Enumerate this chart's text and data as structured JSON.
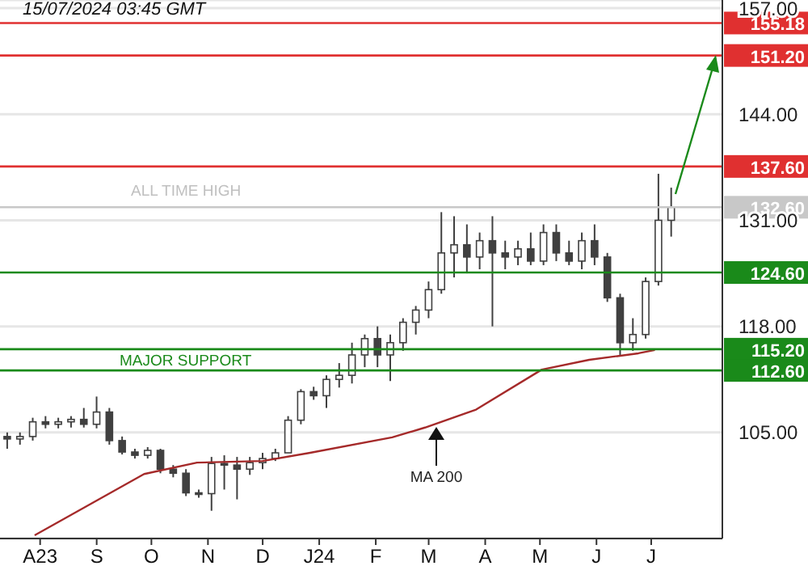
{
  "chart_data": {
    "type": "candlestick",
    "color": "#404040",
    "x": [
      "2023-07-14",
      "2023-07-21",
      "2023-07-28",
      "2023-08-04",
      "2023-08-11",
      "2023-08-18",
      "2023-08-25",
      "2023-09-01",
      "2023-09-08",
      "2023-09-15",
      "2023-09-22",
      "2023-09-29",
      "2023-10-06",
      "2023-10-13",
      "2023-10-20",
      "2023-10-27",
      "2023-11-03",
      "2023-11-10",
      "2023-11-17",
      "2023-11-24",
      "2023-12-01",
      "2023-12-08",
      "2023-12-15",
      "2023-12-22",
      "2023-12-29",
      "2024-01-05",
      "2024-01-12",
      "2024-01-19",
      "2024-01-26",
      "2024-02-02",
      "2024-02-09",
      "2024-02-16",
      "2024-02-23",
      "2024-03-01",
      "2024-03-08",
      "2024-03-15",
      "2024-03-22",
      "2024-03-29",
      "2024-04-05",
      "2024-04-12",
      "2024-04-19",
      "2024-04-26",
      "2024-05-03",
      "2024-05-10",
      "2024-05-17",
      "2024-05-24",
      "2024-05-31",
      "2024-06-07",
      "2024-06-14",
      "2024-06-21",
      "2024-06-28",
      "2024-07-05",
      "2024-07-12"
    ],
    "ohlc": [
      [
        104.5,
        105,
        103,
        104.2
      ],
      [
        104.2,
        105,
        103.5,
        104.5
      ],
      [
        104.5,
        106.8,
        104,
        106.3
      ],
      [
        106.3,
        107,
        105.5,
        106
      ],
      [
        106,
        106.8,
        105.5,
        106.3
      ],
      [
        106.3,
        107,
        105.6,
        106.6
      ],
      [
        106.6,
        108,
        105.6,
        106
      ],
      [
        106,
        109.4,
        105.5,
        107.5
      ],
      [
        107.5,
        108,
        103.5,
        104
      ],
      [
        104,
        104.5,
        102.3,
        102.6
      ],
      [
        102.6,
        103,
        101.8,
        102.2
      ],
      [
        102.2,
        103.2,
        101.8,
        102.8
      ],
      [
        102.8,
        103,
        100,
        100.5
      ],
      [
        100.5,
        101,
        99.5,
        100
      ],
      [
        100,
        100.5,
        97.2,
        97.6
      ],
      [
        97.6,
        98,
        97,
        97.5
      ],
      [
        97.5,
        102,
        95.4,
        101.2
      ],
      [
        101.2,
        102.2,
        98,
        101
      ],
      [
        101,
        102,
        96.8,
        100.5
      ],
      [
        100.5,
        102,
        99.8,
        101.3
      ],
      [
        101.3,
        102.5,
        100.5,
        101.8
      ],
      [
        101.8,
        103,
        101.5,
        102.5
      ],
      [
        102.5,
        107,
        102.5,
        106.5
      ],
      [
        106.5,
        110.3,
        106,
        110
      ],
      [
        110,
        110.6,
        109,
        109.5
      ],
      [
        109.5,
        112,
        108,
        111.5
      ],
      [
        111.5,
        113.5,
        110.5,
        112
      ],
      [
        112,
        116,
        111,
        114.5
      ],
      [
        114.5,
        117,
        113,
        116.5
      ],
      [
        116.5,
        118,
        113,
        114.5
      ],
      [
        114.5,
        117,
        111.3,
        116
      ],
      [
        116,
        119,
        115,
        118.5
      ],
      [
        118.5,
        120.5,
        117,
        120
      ],
      [
        120,
        123.5,
        119,
        122.5
      ],
      [
        122.5,
        132,
        122,
        127
      ],
      [
        127,
        131.5,
        124,
        128
      ],
      [
        128,
        130.5,
        124.5,
        126.5
      ],
      [
        126.5,
        129.5,
        125,
        128.5
      ],
      [
        128.5,
        131.5,
        118,
        127
      ],
      [
        127,
        128.5,
        125,
        126.5
      ],
      [
        126.5,
        128.5,
        125.5,
        127.5
      ],
      [
        127.5,
        129.5,
        125.5,
        126
      ],
      [
        126,
        130.5,
        125.5,
        129.5
      ],
      [
        129.5,
        130.5,
        126,
        127
      ],
      [
        127,
        128.5,
        125.5,
        126
      ],
      [
        126,
        129.5,
        125,
        128.5
      ],
      [
        128.5,
        130.5,
        125.5,
        126.5
      ],
      [
        126.5,
        127,
        121,
        121.5
      ],
      [
        121.5,
        122,
        114.5,
        116
      ],
      [
        116,
        119,
        115,
        117
      ],
      [
        117,
        124,
        116.5,
        123.5
      ],
      [
        123.5,
        136.7,
        123,
        131
      ],
      [
        131,
        135,
        129,
        132.6
      ]
    ],
    "series": [
      {
        "type": "line",
        "color": "#a52a2a",
        "x": [
          "2023-07-29",
          "2023-09-27",
          "2023-10-26",
          "2023-12-01",
          "2023-12-27",
          "2024-02-10",
          "2024-02-28",
          "2024-03-27",
          "2024-05-02",
          "2024-05-28",
          "2024-06-24",
          "2024-07-03"
        ],
        "values": [
          92.4,
          99.9,
          101.3,
          101.5,
          102.5,
          104.4,
          105.6,
          107.8,
          112.7,
          113.9,
          114.7,
          115.1
        ]
      }
    ],
    "xlim": [
      "2023-07-10",
      "2024-08-09"
    ],
    "xticks": [
      {
        "value": "2023-08-01",
        "label": "A23"
      },
      {
        "value": "2023-09-01",
        "label": "S"
      },
      {
        "value": "2023-10-01",
        "label": "O"
      },
      {
        "value": "2023-11-01",
        "label": "N"
      },
      {
        "value": "2023-12-01",
        "label": "D"
      },
      {
        "value": "2024-01-01",
        "label": "J24"
      },
      {
        "value": "2024-02-01",
        "label": "F"
      },
      {
        "value": "2024-03-01",
        "label": "M"
      },
      {
        "value": "2024-04-01",
        "label": "A"
      },
      {
        "value": "2024-05-01",
        "label": "M"
      },
      {
        "value": "2024-06-01",
        "label": "J"
      },
      {
        "value": "2024-07-01",
        "label": "J"
      }
    ],
    "ylim": [
      92,
      158
    ],
    "yticks": [
      {
        "value": 105,
        "label": "105.00"
      },
      {
        "value": 118,
        "label": "118.00"
      },
      {
        "value": 131,
        "label": "131.00"
      },
      {
        "value": 144,
        "label": "144.00"
      },
      {
        "value": 157,
        "label": "157.00"
      }
    ],
    "grid": "y",
    "ref_lines": [
      {
        "axis": "y",
        "value": 155.18,
        "color": "#e03030",
        "label": "155.18"
      },
      {
        "axis": "y",
        "value": 151.2,
        "color": "#e03030",
        "label": "151.20"
      },
      {
        "axis": "y",
        "value": 137.6,
        "color": "#e03030",
        "label": "137.60"
      },
      {
        "axis": "y",
        "value": 132.6,
        "color": "#c8c8c8",
        "label": "132.60"
      },
      {
        "axis": "y",
        "value": 124.6,
        "color": "#1a8a1a",
        "label": "124.60"
      },
      {
        "axis": "y",
        "value": 115.2,
        "color": "#1a8a1a",
        "label": "115.20"
      },
      {
        "axis": "y",
        "value": 112.6,
        "color": "#1a8a1a",
        "label": "112.60"
      }
    ],
    "annotations": [
      "15/07/2024 03:45 GMT",
      "ALL TIME HIGH",
      "MAJOR SUPPORT",
      "MA 200"
    ]
  }
}
